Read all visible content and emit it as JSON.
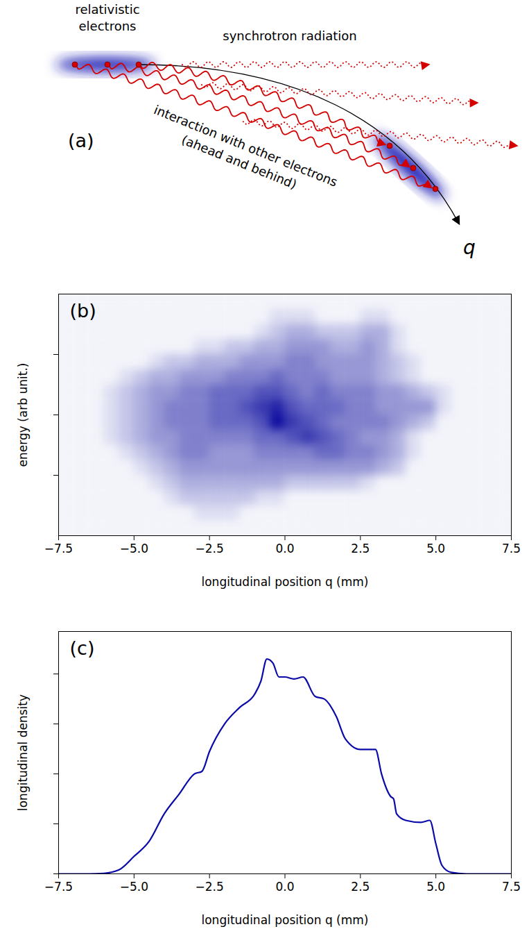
{
  "diagram": {
    "label": "(a)",
    "bunch_label": [
      "relativistic",
      "electrons"
    ],
    "radiation_label": "synchrotron radiation",
    "interaction_label": [
      "interaction with other electrons",
      "(ahead and behind)"
    ],
    "axis_label": "q"
  },
  "chart_data": [
    {
      "type": "heatmap",
      "panel_label": "(b)",
      "xlabel": "longitudinal position q (mm)",
      "ylabel": "energy (arb unit.)",
      "color": "#0a0a9e",
      "x": [
        -7.25,
        -6.75,
        -6.25,
        -5.75,
        -5.25,
        -4.75,
        -4.25,
        -3.75,
        -3.25,
        -2.75,
        -2.25,
        -1.75,
        -1.25,
        -0.75,
        -0.25,
        0.25,
        0.75,
        1.25,
        1.75,
        2.25,
        2.75,
        3.25,
        3.75,
        4.25,
        4.75,
        5.25,
        5.75,
        6.25,
        6.75,
        7.25
      ],
      "y": [
        1.875,
        1.625,
        1.375,
        1.125,
        0.875,
        0.625,
        0.375,
        0.125,
        -0.125,
        -0.375,
        -0.625,
        -0.875,
        -1.125,
        -1.375,
        -1.625,
        -1.875
      ],
      "cells": [
        [
          0,
          0,
          0,
          0,
          0,
          0,
          0,
          0,
          0,
          0,
          0,
          0,
          0,
          0,
          0,
          0,
          0,
          0,
          0,
          0,
          0,
          0,
          0,
          0,
          0,
          0,
          0,
          0,
          0,
          0
        ],
        [
          0,
          0,
          0,
          0,
          0,
          0,
          0,
          0,
          0,
          0,
          0,
          0,
          0,
          0,
          1,
          1,
          1,
          0,
          0,
          0,
          1,
          1,
          0,
          0,
          0,
          0,
          0,
          0,
          0,
          0
        ],
        [
          0,
          0,
          0,
          0,
          0,
          0,
          0,
          0,
          0,
          0,
          0,
          0,
          0,
          1,
          2,
          3,
          3,
          2,
          2,
          2,
          3,
          3,
          1,
          0,
          0,
          0,
          0,
          0,
          0,
          0
        ],
        [
          0,
          0,
          0,
          0,
          0,
          0,
          0,
          0,
          0,
          1,
          1,
          2,
          2,
          3,
          3,
          4,
          4,
          4,
          3,
          3,
          4,
          3,
          1,
          0,
          0,
          0,
          0,
          0,
          0,
          0
        ],
        [
          0,
          0,
          0,
          0,
          0,
          0,
          1,
          2,
          2,
          3,
          3,
          3,
          4,
          4,
          4,
          5,
          5,
          4,
          4,
          4,
          4,
          3,
          2,
          1,
          0,
          0,
          0,
          0,
          0,
          0
        ],
        [
          0,
          0,
          0,
          0,
          1,
          2,
          3,
          3,
          4,
          4,
          4,
          5,
          5,
          5,
          6,
          5,
          5,
          5,
          4,
          4,
          4,
          3,
          2,
          1,
          0,
          0,
          0,
          0,
          0,
          0
        ],
        [
          0,
          0,
          0,
          1,
          2,
          3,
          4,
          4,
          5,
          5,
          6,
          6,
          6,
          7,
          7,
          6,
          5,
          6,
          5,
          5,
          5,
          4,
          4,
          3,
          2,
          1,
          0,
          0,
          0,
          0
        ],
        [
          0,
          0,
          0,
          1,
          2,
          3,
          4,
          5,
          5,
          5,
          6,
          6,
          7,
          8,
          9,
          7,
          6,
          6,
          6,
          5,
          5,
          4,
          4,
          4,
          4,
          1,
          0,
          0,
          0,
          0
        ],
        [
          0,
          0,
          0,
          1,
          2,
          3,
          4,
          5,
          5,
          5,
          6,
          6,
          6,
          7,
          10,
          8,
          7,
          6,
          5,
          5,
          5,
          5,
          4,
          3,
          2,
          0,
          0,
          0,
          0,
          0
        ],
        [
          0,
          0,
          0,
          1,
          2,
          3,
          4,
          4,
          5,
          5,
          5,
          5,
          5,
          6,
          6,
          7,
          8,
          7,
          6,
          5,
          4,
          4,
          3,
          1,
          0,
          0,
          0,
          0,
          0,
          0
        ],
        [
          0,
          0,
          0,
          0,
          1,
          2,
          3,
          4,
          5,
          5,
          4,
          4,
          4,
          5,
          5,
          5,
          5,
          6,
          6,
          5,
          5,
          4,
          3,
          1,
          0,
          0,
          0,
          0,
          0,
          0
        ],
        [
          0,
          0,
          0,
          0,
          0,
          1,
          2,
          3,
          4,
          4,
          4,
          4,
          4,
          4,
          4,
          4,
          4,
          4,
          4,
          4,
          4,
          3,
          2,
          0,
          0,
          0,
          0,
          0,
          0,
          0
        ],
        [
          0,
          0,
          0,
          0,
          0,
          0,
          1,
          2,
          3,
          3,
          3,
          3,
          3,
          3,
          3,
          2,
          2,
          2,
          2,
          2,
          1,
          0,
          0,
          0,
          0,
          0,
          0,
          0,
          0,
          0
        ],
        [
          0,
          0,
          0,
          0,
          0,
          0,
          0,
          1,
          2,
          2,
          2,
          2,
          2,
          1,
          1,
          0,
          0,
          0,
          0,
          0,
          0,
          0,
          0,
          0,
          0,
          0,
          0,
          0,
          0,
          0
        ],
        [
          0,
          0,
          0,
          0,
          0,
          0,
          0,
          0,
          0,
          1,
          1,
          1,
          0,
          0,
          0,
          0,
          0,
          0,
          0,
          0,
          0,
          0,
          0,
          0,
          0,
          0,
          0,
          0,
          0,
          0
        ],
        [
          0,
          0,
          0,
          0,
          0,
          0,
          0,
          0,
          0,
          0,
          0,
          0,
          0,
          0,
          0,
          0,
          0,
          0,
          0,
          0,
          0,
          0,
          0,
          0,
          0,
          0,
          0,
          0,
          0,
          0
        ]
      ],
      "clim": [
        0,
        10
      ],
      "xlim": [
        -7.5,
        7.5
      ],
      "ylim": [
        -2,
        2
      ],
      "xticks": [
        {
          "value": -7.5,
          "label": "−7.5"
        },
        {
          "value": -5,
          "label": "−5.0"
        },
        {
          "value": -2.5,
          "label": "−2.5"
        },
        {
          "value": 0,
          "label": "0.0"
        },
        {
          "value": 2.5,
          "label": "2.5"
        },
        {
          "value": 5,
          "label": "5.0"
        },
        {
          "value": 7.5,
          "label": "7.5"
        }
      ],
      "yticks": [
        -1,
        0,
        1
      ],
      "tick_labels": "x"
    },
    {
      "type": "line",
      "panel_label": "(c)",
      "xlabel": "longitudinal position q (mm)",
      "ylabel": "longitudinal density",
      "color": "#0a0aa8",
      "x": [
        -7.5,
        -6.5,
        -6.0,
        -5.5,
        -5.0,
        -4.5,
        -4.0,
        -3.5,
        -3.0,
        -2.75,
        -2.5,
        -2.0,
        -1.5,
        -1.0,
        -0.8,
        -0.6,
        -0.4,
        -0.2,
        0.0,
        0.3,
        0.6,
        1.0,
        1.3,
        1.7,
        2.0,
        2.5,
        3.0,
        3.2,
        3.5,
        3.6,
        3.7,
        4.0,
        4.5,
        4.8,
        5.0,
        5.2,
        5.5,
        6.0,
        7.5
      ],
      "values": [
        0,
        0,
        0.01,
        0.08,
        0.35,
        0.65,
        1.2,
        1.6,
        2.0,
        2.05,
        2.45,
        3.0,
        3.33,
        3.6,
        3.85,
        4.3,
        4.22,
        3.94,
        3.94,
        3.9,
        3.94,
        3.55,
        3.5,
        3.15,
        2.7,
        2.49,
        2.49,
        2.0,
        1.55,
        1.5,
        1.2,
        1.07,
        1.03,
        1.07,
        0.6,
        0.17,
        0.03,
        0,
        0
      ],
      "xlim": [
        -7.5,
        7.5
      ],
      "ylim": [
        0,
        4.85
      ],
      "xticks": [
        {
          "value": -7.5,
          "label": "−7.5"
        },
        {
          "value": -5,
          "label": "−5.0"
        },
        {
          "value": -2.5,
          "label": "−2.5"
        },
        {
          "value": 0,
          "label": "0.0"
        },
        {
          "value": 2.5,
          "label": "2.5"
        },
        {
          "value": 5,
          "label": "5.0"
        },
        {
          "value": 7.5,
          "label": "7.5"
        }
      ],
      "yticks": [
        0,
        1,
        2,
        3,
        4
      ],
      "tick_labels": "x"
    }
  ]
}
